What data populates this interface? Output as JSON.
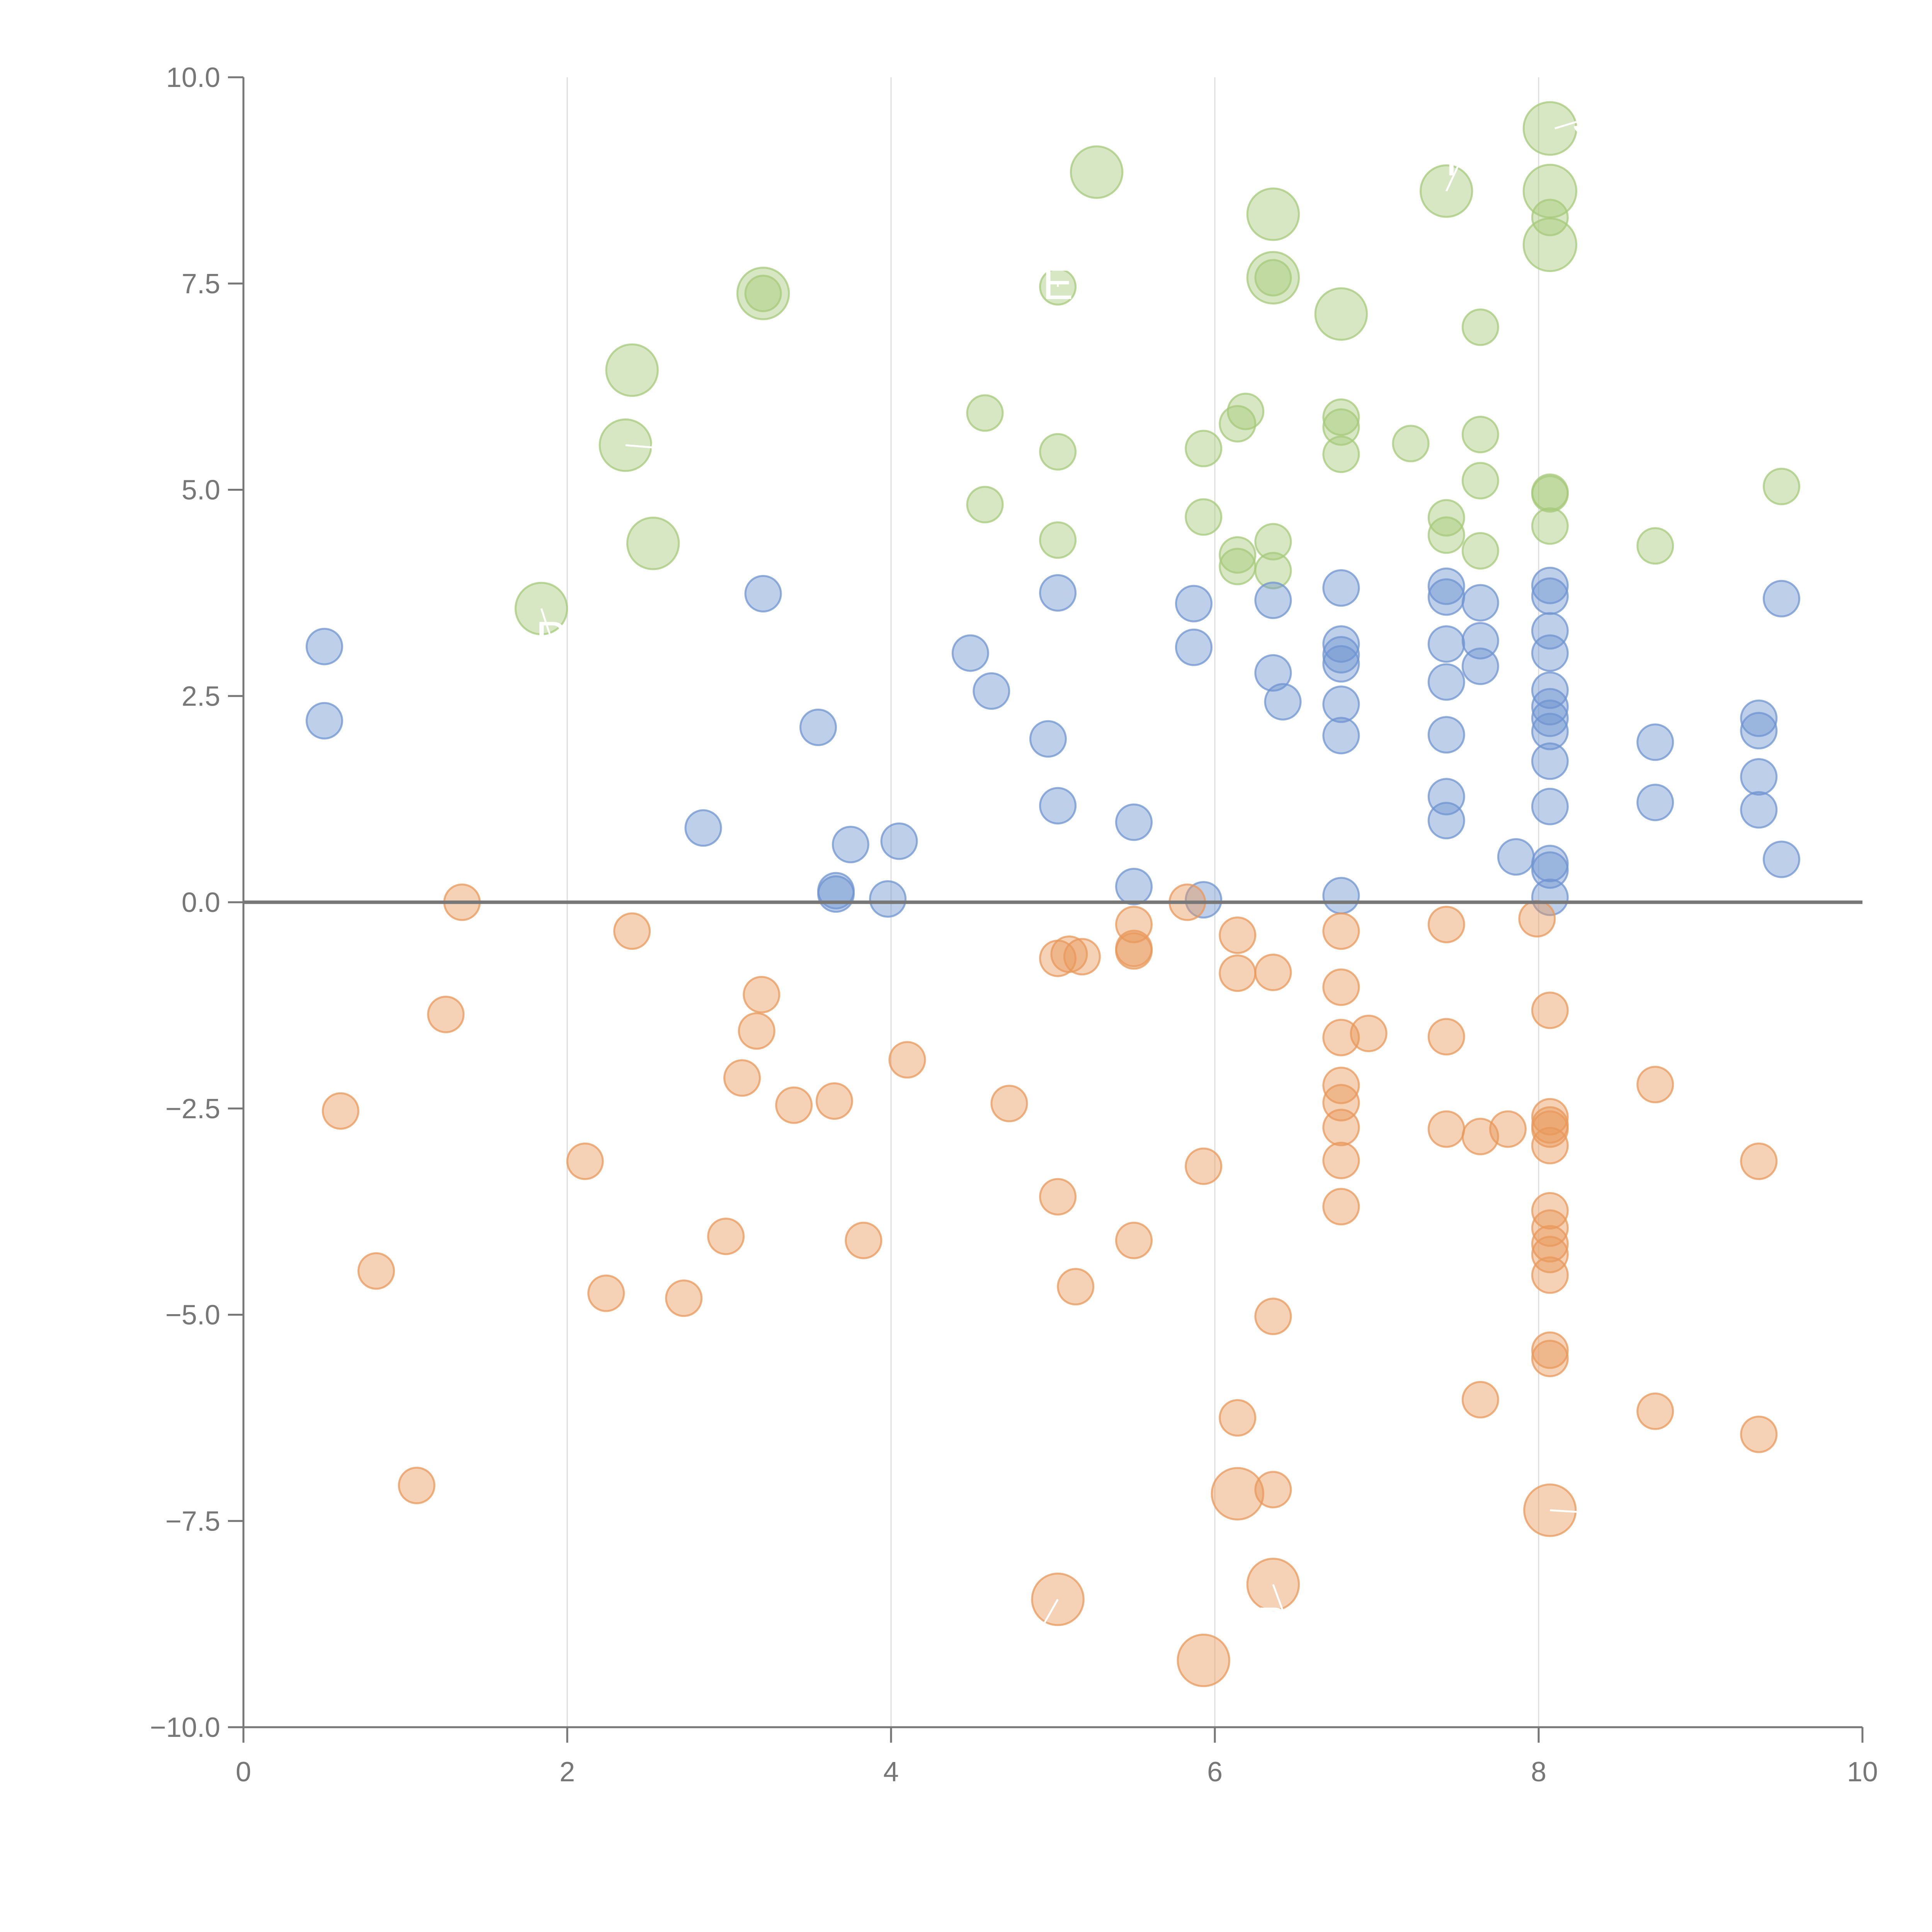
{
  "colors": {
    "positive": "#6f94d0",
    "negative": "#e8985b",
    "top": "#a6c979",
    "axis": "#777777",
    "grid": "#dddddd",
    "label": "#ffffff"
  },
  "chart_data": {
    "type": "scatter",
    "title": "",
    "xlabel": "",
    "ylabel": "",
    "xlim": [
      0,
      10
    ],
    "ylim": [
      -10,
      10
    ],
    "x_ticks": [
      0,
      2,
      4,
      6,
      8,
      10
    ],
    "x_tick_labels": [
      "0",
      "2",
      "4",
      "6",
      "8",
      "10"
    ],
    "y_ticks": [
      -10,
      -7.5,
      -5,
      -2.5,
      0,
      2.5,
      5,
      7.5,
      10
    ],
    "y_tick_labels": [
      "−10.0",
      "−7.5",
      "−5.0",
      "−2.5",
      "0.0",
      "2.5",
      "5.0",
      "7.5",
      "10.0"
    ],
    "vertical_grid_at": [
      2,
      4,
      6,
      8
    ],
    "zero_line": true,
    "series": [
      {
        "name": "top",
        "color": "#a6c979",
        "points": [
          [
            8.07,
            9.38,
            2.2
          ],
          [
            8.07,
            8.62,
            2.2
          ],
          [
            8.07,
            7.97,
            2.2
          ],
          [
            7.43,
            8.62,
            2.1
          ],
          [
            6.36,
            8.34,
            2.1
          ],
          [
            6.36,
            7.57,
            2.1
          ],
          [
            6.78,
            7.13,
            2.1
          ],
          [
            5.27,
            8.85,
            2.1
          ],
          [
            3.21,
            7.38,
            2.1
          ],
          [
            2.4,
            6.45,
            2.1
          ],
          [
            2.36,
            5.54,
            2.1
          ],
          [
            2.53,
            4.35,
            2.1
          ],
          [
            1.84,
            3.56,
            2.1
          ],
          [
            3.21,
            7.38,
            1
          ],
          [
            6.36,
            7.57,
            1
          ],
          [
            8.07,
            8.3,
            1
          ],
          [
            5.03,
            7.46,
            1
          ],
          [
            4.58,
            5.93,
            1
          ],
          [
            4.58,
            4.82,
            1
          ],
          [
            5.03,
            5.46,
            1
          ],
          [
            5.03,
            4.39,
            1
          ],
          [
            5.93,
            5.5,
            1
          ],
          [
            5.93,
            4.67,
            1
          ],
          [
            6.14,
            5.8,
            1
          ],
          [
            6.19,
            5.95,
            1
          ],
          [
            6.14,
            4.21,
            1
          ],
          [
            6.14,
            4.07,
            1
          ],
          [
            6.36,
            4.37,
            1
          ],
          [
            6.36,
            4.02,
            1
          ],
          [
            6.78,
            5.88,
            1
          ],
          [
            6.78,
            5.76,
            1
          ],
          [
            6.78,
            5.43,
            1
          ],
          [
            7.21,
            5.56,
            1
          ],
          [
            7.43,
            4.66,
            1
          ],
          [
            7.43,
            4.45,
            1
          ],
          [
            7.64,
            6.97,
            1
          ],
          [
            7.64,
            5.67,
            1
          ],
          [
            7.64,
            5.11,
            1
          ],
          [
            7.64,
            4.26,
            1
          ],
          [
            8.07,
            4.97,
            1
          ],
          [
            8.07,
            4.95,
            1
          ],
          [
            8.07,
            4.56,
            1
          ],
          [
            8.72,
            4.32,
            1
          ],
          [
            9.5,
            5.04,
            1
          ]
        ]
      },
      {
        "name": "positive",
        "color": "#6f94d0",
        "points": [
          [
            0.5,
            3.1,
            1
          ],
          [
            0.5,
            2.2,
            1
          ],
          [
            3.21,
            3.74,
            1
          ],
          [
            3.55,
            2.12,
            1
          ],
          [
            2.84,
            0.9,
            1
          ],
          [
            3.75,
            0.7,
            1
          ],
          [
            4.05,
            0.74,
            1
          ],
          [
            3.66,
            0.14,
            1
          ],
          [
            3.66,
            0.1,
            1
          ],
          [
            3.98,
            0.04,
            1
          ],
          [
            4.49,
            3.02,
            1
          ],
          [
            4.62,
            2.56,
            1
          ],
          [
            4.97,
            1.98,
            1
          ],
          [
            5.03,
            3.75,
            1
          ],
          [
            5.03,
            1.17,
            1
          ],
          [
            5.5,
            0.97,
            1
          ],
          [
            5.5,
            0.19,
            1
          ],
          [
            5.93,
            0.03,
            1
          ],
          [
            5.87,
            3.62,
            1
          ],
          [
            5.87,
            3.09,
            1
          ],
          [
            6.36,
            3.66,
            1
          ],
          [
            6.36,
            2.78,
            1
          ],
          [
            6.42,
            2.43,
            1
          ],
          [
            6.78,
            3.81,
            1
          ],
          [
            6.78,
            3.13,
            1
          ],
          [
            6.78,
            3.0,
            1
          ],
          [
            6.78,
            2.89,
            1
          ],
          [
            6.78,
            2.4,
            1
          ],
          [
            6.78,
            2.02,
            1
          ],
          [
            6.78,
            0.08,
            1
          ],
          [
            7.43,
            3.83,
            1
          ],
          [
            7.43,
            3.7,
            1
          ],
          [
            7.43,
            3.13,
            1
          ],
          [
            7.43,
            2.67,
            1
          ],
          [
            7.43,
            2.03,
            1
          ],
          [
            7.43,
            1.28,
            1
          ],
          [
            7.43,
            0.99,
            1
          ],
          [
            7.64,
            3.63,
            1
          ],
          [
            7.64,
            3.17,
            1
          ],
          [
            7.64,
            2.86,
            1
          ],
          [
            7.86,
            0.55,
            1
          ],
          [
            8.07,
            3.84,
            1
          ],
          [
            8.07,
            3.71,
            1
          ],
          [
            8.07,
            3.29,
            1
          ],
          [
            8.07,
            3.02,
            1
          ],
          [
            8.07,
            2.57,
            1
          ],
          [
            8.07,
            2.37,
            1
          ],
          [
            8.07,
            2.23,
            1
          ],
          [
            8.07,
            2.07,
            1
          ],
          [
            8.07,
            1.71,
            1
          ],
          [
            8.07,
            1.16,
            1
          ],
          [
            8.07,
            0.47,
            1
          ],
          [
            8.07,
            0.39,
            1
          ],
          [
            8.07,
            0.06,
            1
          ],
          [
            8.72,
            1.94,
            1
          ],
          [
            8.72,
            1.21,
            1
          ],
          [
            9.36,
            2.23,
            1
          ],
          [
            9.36,
            2.08,
            1
          ],
          [
            9.36,
            1.52,
            1
          ],
          [
            9.36,
            1.12,
            1
          ],
          [
            9.5,
            3.68,
            1
          ],
          [
            9.5,
            0.52,
            1
          ]
        ]
      },
      {
        "name": "negative",
        "color": "#e8985b",
        "points": [
          [
            5.93,
            -9.19,
            2.1
          ],
          [
            5.03,
            -8.45,
            2.1
          ],
          [
            6.36,
            -8.27,
            2.1
          ],
          [
            6.14,
            -7.17,
            2.1
          ],
          [
            8.07,
            -7.37,
            2.1
          ],
          [
            1.35,
            0.0,
            1
          ],
          [
            2.4,
            -0.35,
            1
          ],
          [
            1.25,
            -1.36,
            1
          ],
          [
            0.6,
            -2.53,
            1
          ],
          [
            0.82,
            -4.47,
            1
          ],
          [
            1.07,
            -7.07,
            1
          ],
          [
            2.11,
            -3.14,
            1
          ],
          [
            2.24,
            -4.74,
            1
          ],
          [
            2.72,
            -4.8,
            1
          ],
          [
            2.98,
            -4.05,
            1
          ],
          [
            3.08,
            -2.13,
            1
          ],
          [
            3.17,
            -1.56,
            1
          ],
          [
            3.2,
            -1.12,
            1
          ],
          [
            3.4,
            -2.46,
            1
          ],
          [
            3.65,
            -2.41,
            1
          ],
          [
            3.83,
            -4.1,
            1
          ],
          [
            4.1,
            -1.91,
            1
          ],
          [
            4.73,
            -2.44,
            1
          ],
          [
            5.03,
            -3.57,
            1
          ],
          [
            5.03,
            -0.68,
            1
          ],
          [
            5.1,
            -0.63,
            1
          ],
          [
            5.18,
            -0.66,
            1
          ],
          [
            5.14,
            -4.66,
            1
          ],
          [
            5.5,
            -0.27,
            1
          ],
          [
            5.5,
            -0.56,
            1
          ],
          [
            5.5,
            -0.59,
            1
          ],
          [
            5.5,
            -4.1,
            1
          ],
          [
            5.83,
            0.0,
            1
          ],
          [
            5.93,
            -3.2,
            1
          ],
          [
            6.14,
            -0.4,
            1
          ],
          [
            6.14,
            -0.86,
            1
          ],
          [
            6.36,
            -0.85,
            1
          ],
          [
            6.14,
            -6.25,
            1
          ],
          [
            6.36,
            -5.02,
            1
          ],
          [
            6.36,
            -7.12,
            1
          ],
          [
            6.78,
            -0.35,
            1
          ],
          [
            6.78,
            -1.03,
            1
          ],
          [
            6.78,
            -1.64,
            1
          ],
          [
            6.95,
            -1.59,
            1
          ],
          [
            6.78,
            -2.22,
            1
          ],
          [
            6.78,
            -2.43,
            1
          ],
          [
            6.78,
            -2.73,
            1
          ],
          [
            6.78,
            -3.13,
            1
          ],
          [
            6.78,
            -3.69,
            1
          ],
          [
            7.43,
            -0.27,
            1
          ],
          [
            7.43,
            -1.63,
            1
          ],
          [
            7.43,
            -2.75,
            1
          ],
          [
            7.64,
            -2.84,
            1
          ],
          [
            7.81,
            -2.75,
            1
          ],
          [
            7.64,
            -6.03,
            1
          ],
          [
            7.99,
            -0.2,
            1
          ],
          [
            8.07,
            -1.31,
            1
          ],
          [
            8.07,
            -2.6,
            1
          ],
          [
            8.07,
            -2.7,
            1
          ],
          [
            8.07,
            -2.75,
            1
          ],
          [
            8.07,
            -2.95,
            1
          ],
          [
            8.07,
            -3.74,
            1
          ],
          [
            8.07,
            -3.95,
            1
          ],
          [
            8.07,
            -4.14,
            1
          ],
          [
            8.07,
            -4.27,
            1
          ],
          [
            8.07,
            -4.52,
            1
          ],
          [
            8.07,
            -5.43,
            1
          ],
          [
            8.07,
            -5.53,
            1
          ],
          [
            8.72,
            -2.21,
            1
          ],
          [
            8.72,
            -6.17,
            1
          ],
          [
            9.36,
            -3.14,
            1
          ],
          [
            9.36,
            -6.45,
            1
          ]
        ]
      }
    ],
    "annotations": [
      {
        "text": "S",
        "x": 8.3,
        "y": 9.5,
        "px": 8.1,
        "py": 9.38
      },
      {
        "text": "P",
        "x": 1.9,
        "y": 3.2,
        "px": 1.84,
        "py": 3.56
      },
      {
        "text": "P",
        "x": 7.52,
        "y": 9.0,
        "px": 7.43,
        "py": 8.62
      },
      {
        "text": "C",
        "x": 2.61,
        "y": 5.5,
        "px": 2.36,
        "py": 5.54
      },
      {
        "text": "E",
        "x": 5.03,
        "y": 7.5,
        "px": 5.03,
        "py": 7.46
      },
      {
        "text": "PE",
        "x": 6.45,
        "y": -8.75,
        "px": 6.36,
        "py": -8.27
      },
      {
        "text": "D",
        "x": 4.9,
        "y": -8.9,
        "px": 5.03,
        "py": -8.45
      },
      {
        "text": "L",
        "x": 8.32,
        "y": -7.4,
        "px": 8.07,
        "py": -7.37
      }
    ]
  }
}
